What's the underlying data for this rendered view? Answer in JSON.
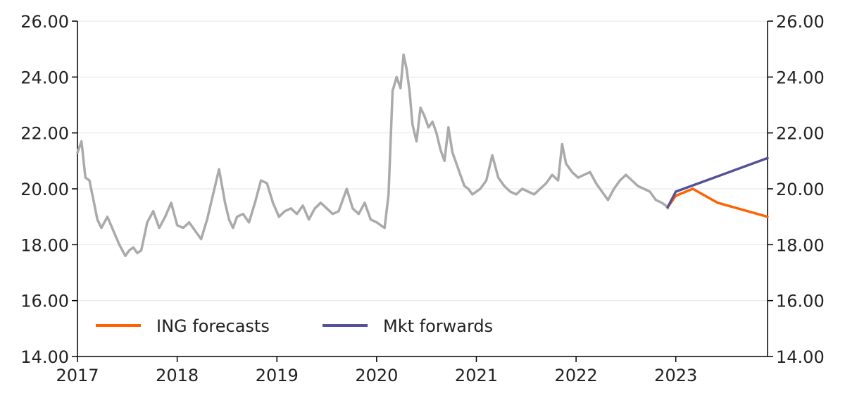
{
  "chart_data": {
    "type": "line",
    "title": "",
    "xlabel": "",
    "ylabel": "",
    "x_range": [
      2017.0,
      2023.92
    ],
    "ylim": [
      14,
      26
    ],
    "x_ticks": [
      2017,
      2018,
      2019,
      2020,
      2021,
      2022,
      2023
    ],
    "x_tick_labels": [
      "2017",
      "2018",
      "2019",
      "2020",
      "2021",
      "2022",
      "2023"
    ],
    "y_ticks": [
      14,
      16,
      18,
      20,
      22,
      24,
      26
    ],
    "y_tick_labels": [
      "14.00",
      "16.00",
      "18.00",
      "20.00",
      "22.00",
      "24.00",
      "26.00"
    ],
    "grid": "horizontal",
    "legend_position": "bottom-left",
    "series": [
      {
        "color": "#aaaaaa",
        "x": [
          2017.0,
          2017.04,
          2017.08,
          2017.12,
          2017.16,
          2017.2,
          2017.24,
          2017.3,
          2017.36,
          2017.42,
          2017.48,
          2017.52,
          2017.56,
          2017.6,
          2017.64,
          2017.7,
          2017.76,
          2017.82,
          2017.88,
          2017.94,
          2018.0,
          2018.06,
          2018.12,
          2018.18,
          2018.24,
          2018.3,
          2018.36,
          2018.42,
          2018.48,
          2018.52,
          2018.56,
          2018.6,
          2018.66,
          2018.72,
          2018.78,
          2018.84,
          2018.9,
          2018.96,
          2019.02,
          2019.08,
          2019.14,
          2019.2,
          2019.26,
          2019.32,
          2019.38,
          2019.44,
          2019.5,
          2019.56,
          2019.62,
          2019.66,
          2019.7,
          2019.76,
          2019.82,
          2019.88,
          2019.94,
          2020.0,
          2020.04,
          2020.08,
          2020.12,
          2020.16,
          2020.2,
          2020.24,
          2020.27,
          2020.3,
          2020.33,
          2020.36,
          2020.4,
          2020.44,
          2020.48,
          2020.52,
          2020.56,
          2020.6,
          2020.64,
          2020.68,
          2020.72,
          2020.76,
          2020.8,
          2020.84,
          2020.88,
          2020.92,
          2020.96,
          2021.0,
          2021.04,
          2021.1,
          2021.16,
          2021.22,
          2021.28,
          2021.34,
          2021.4,
          2021.46,
          2021.52,
          2021.58,
          2021.64,
          2021.7,
          2021.76,
          2021.82,
          2021.86,
          2021.9,
          2021.96,
          2022.02,
          2022.08,
          2022.14,
          2022.2,
          2022.26,
          2022.32,
          2022.38,
          2022.44,
          2022.5,
          2022.56,
          2022.62,
          2022.68,
          2022.74,
          2022.8,
          2022.86,
          2022.9,
          2022.92
        ],
        "values": [
          21.3,
          21.7,
          20.4,
          20.3,
          19.6,
          18.9,
          18.6,
          19.0,
          18.5,
          18.0,
          17.6,
          17.8,
          17.9,
          17.7,
          17.8,
          18.8,
          19.2,
          18.6,
          19.0,
          19.5,
          18.7,
          18.6,
          18.8,
          18.5,
          18.2,
          18.9,
          19.8,
          20.7,
          19.5,
          18.9,
          18.6,
          19.0,
          19.1,
          18.8,
          19.5,
          20.3,
          20.2,
          19.5,
          19.0,
          19.2,
          19.3,
          19.1,
          19.4,
          18.9,
          19.3,
          19.5,
          19.3,
          19.1,
          19.2,
          19.6,
          20.0,
          19.3,
          19.1,
          19.5,
          18.9,
          18.8,
          18.7,
          18.6,
          19.8,
          23.5,
          24.0,
          23.6,
          24.8,
          24.3,
          23.5,
          22.3,
          21.7,
          22.9,
          22.6,
          22.2,
          22.4,
          22.0,
          21.4,
          21.0,
          22.2,
          21.3,
          20.9,
          20.5,
          20.1,
          20.0,
          19.8,
          19.9,
          20.0,
          20.3,
          21.2,
          20.4,
          20.1,
          19.9,
          19.8,
          20.0,
          19.9,
          19.8,
          20.0,
          20.2,
          20.5,
          20.3,
          21.6,
          20.9,
          20.6,
          20.4,
          20.5,
          20.6,
          20.2,
          19.9,
          19.6,
          20.0,
          20.3,
          20.5,
          20.3,
          20.1,
          20.0,
          19.9,
          19.6,
          19.5,
          19.4,
          19.3
        ]
      },
      {
        "name": "ING forecasts",
        "color": "#ff6200",
        "x": [
          2022.92,
          2023.0,
          2023.17,
          2023.42,
          2023.92
        ],
        "values": [
          19.35,
          19.75,
          20.0,
          19.5,
          19.0
        ]
      },
      {
        "name": "Mkt forwards",
        "color": "#525199",
        "x": [
          2022.92,
          2023.0,
          2023.92
        ],
        "values": [
          19.35,
          19.9,
          21.1
        ]
      }
    ]
  }
}
